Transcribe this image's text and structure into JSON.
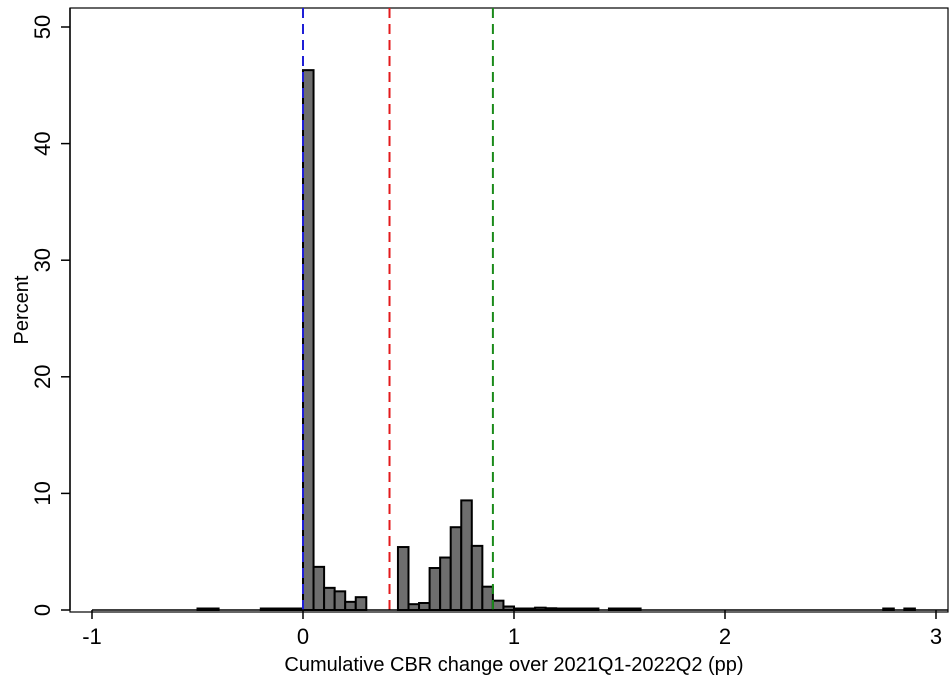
{
  "chart_data": {
    "type": "bar",
    "title": "",
    "xlabel": "Cumulative CBR change over 2021Q1-2022Q2 (pp)",
    "ylabel": "Percent",
    "xlim": [
      -1,
      3
    ],
    "ylim": [
      0,
      51
    ],
    "bin_width": 0.05,
    "x_ticks": [
      {
        "value": -1,
        "label": "-1"
      },
      {
        "value": 0,
        "label": "0"
      },
      {
        "value": 1,
        "label": "1"
      },
      {
        "value": 2,
        "label": "2"
      },
      {
        "value": 3,
        "label": "3"
      }
    ],
    "y_ticks": [
      {
        "value": 0,
        "label": "0"
      },
      {
        "value": 10,
        "label": "10"
      },
      {
        "value": 20,
        "label": "20"
      },
      {
        "value": 30,
        "label": "30"
      },
      {
        "value": 40,
        "label": "40"
      },
      {
        "value": 50,
        "label": "50"
      }
    ],
    "bins": [
      {
        "x": -0.5,
        "value": 0.05
      },
      {
        "x": -0.45,
        "value": 0.05
      },
      {
        "x": -0.2,
        "value": 0.1
      },
      {
        "x": -0.15,
        "value": 0.05
      },
      {
        "x": -0.1,
        "value": 0.1
      },
      {
        "x": -0.05,
        "value": 0.1
      },
      {
        "x": 0.0,
        "value": 46.3
      },
      {
        "x": 0.05,
        "value": 3.7
      },
      {
        "x": 0.1,
        "value": 1.9
      },
      {
        "x": 0.15,
        "value": 1.6
      },
      {
        "x": 0.2,
        "value": 0.7
      },
      {
        "x": 0.25,
        "value": 1.1
      },
      {
        "x": 0.45,
        "value": 5.4
      },
      {
        "x": 0.5,
        "value": 0.5
      },
      {
        "x": 0.55,
        "value": 0.6
      },
      {
        "x": 0.6,
        "value": 3.6
      },
      {
        "x": 0.65,
        "value": 4.5
      },
      {
        "x": 0.7,
        "value": 7.1
      },
      {
        "x": 0.75,
        "value": 9.4
      },
      {
        "x": 0.8,
        "value": 5.5
      },
      {
        "x": 0.85,
        "value": 2.0
      },
      {
        "x": 0.9,
        "value": 0.8
      },
      {
        "x": 0.95,
        "value": 0.3
      },
      {
        "x": 1.0,
        "value": 0.05
      },
      {
        "x": 1.05,
        "value": 0.05
      },
      {
        "x": 1.1,
        "value": 0.2
      },
      {
        "x": 1.15,
        "value": 0.15
      },
      {
        "x": 1.2,
        "value": 0.05
      },
      {
        "x": 1.25,
        "value": 0.05
      },
      {
        "x": 1.3,
        "value": 0.05
      },
      {
        "x": 1.35,
        "value": 0.05
      },
      {
        "x": 1.45,
        "value": 0.1
      },
      {
        "x": 1.5,
        "value": 0.05
      },
      {
        "x": 1.55,
        "value": 0.05
      },
      {
        "x": 2.75,
        "value": 0.05
      },
      {
        "x": 2.85,
        "value": 0.05
      }
    ],
    "reference_lines": [
      {
        "x": 0.0,
        "color": "#1f1fd6",
        "style": "dashed"
      },
      {
        "x": 0.41,
        "color": "#e31a1c",
        "style": "dashed"
      },
      {
        "x": 0.9,
        "color": "#1a8a1a",
        "style": "dashed"
      }
    ],
    "bar_color": "#6e6e6e",
    "bar_edge_color": "#000000",
    "grid": false
  }
}
